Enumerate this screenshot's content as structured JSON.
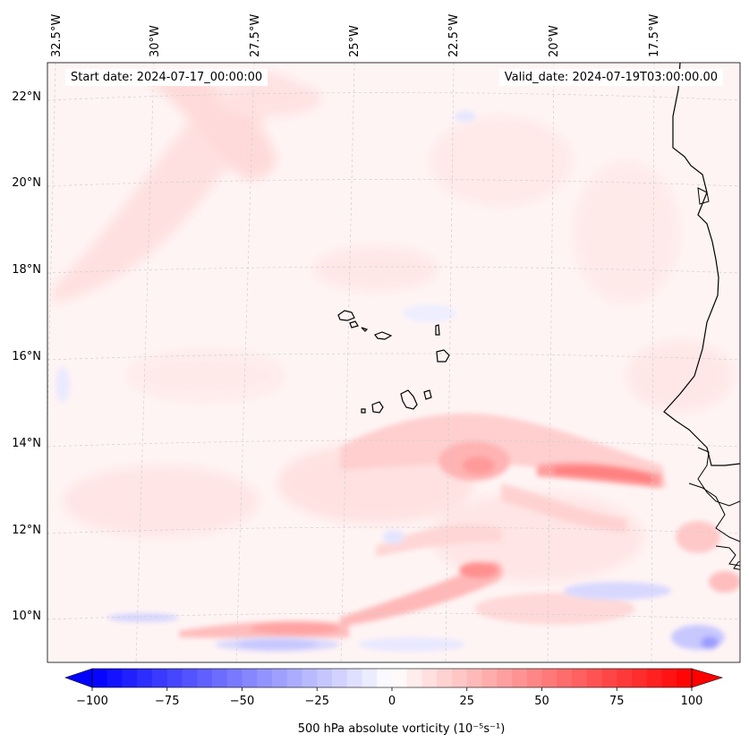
{
  "map": {
    "start_date_label": "Start date: 2024-07-17_00:00:00",
    "valid_date_label": "Valid_date: 2024-07-19T03:00:00.00",
    "lon_labels": [
      "32.5°W",
      "30°W",
      "27.5°W",
      "25°W",
      "22.5°W",
      "20°W",
      "17.5°W"
    ],
    "lat_labels": [
      "22°N",
      "20°N",
      "18°N",
      "16°N",
      "14°N",
      "12°N",
      "10°N"
    ],
    "region": "Cape Verde Islands and West African coast (Senegal)"
  },
  "colorbar": {
    "title": "500 hPa absolute vorticity (10⁻⁵s⁻¹)",
    "ticks": [
      "−100",
      "−75",
      "−50",
      "−25",
      "0",
      "25",
      "50",
      "75",
      "100"
    ],
    "range": [
      -100,
      100
    ],
    "step": 5,
    "colormap": "bwr",
    "low_color": "#0000ff",
    "mid_color": "#ffffff",
    "high_color": "#ff0000"
  }
}
